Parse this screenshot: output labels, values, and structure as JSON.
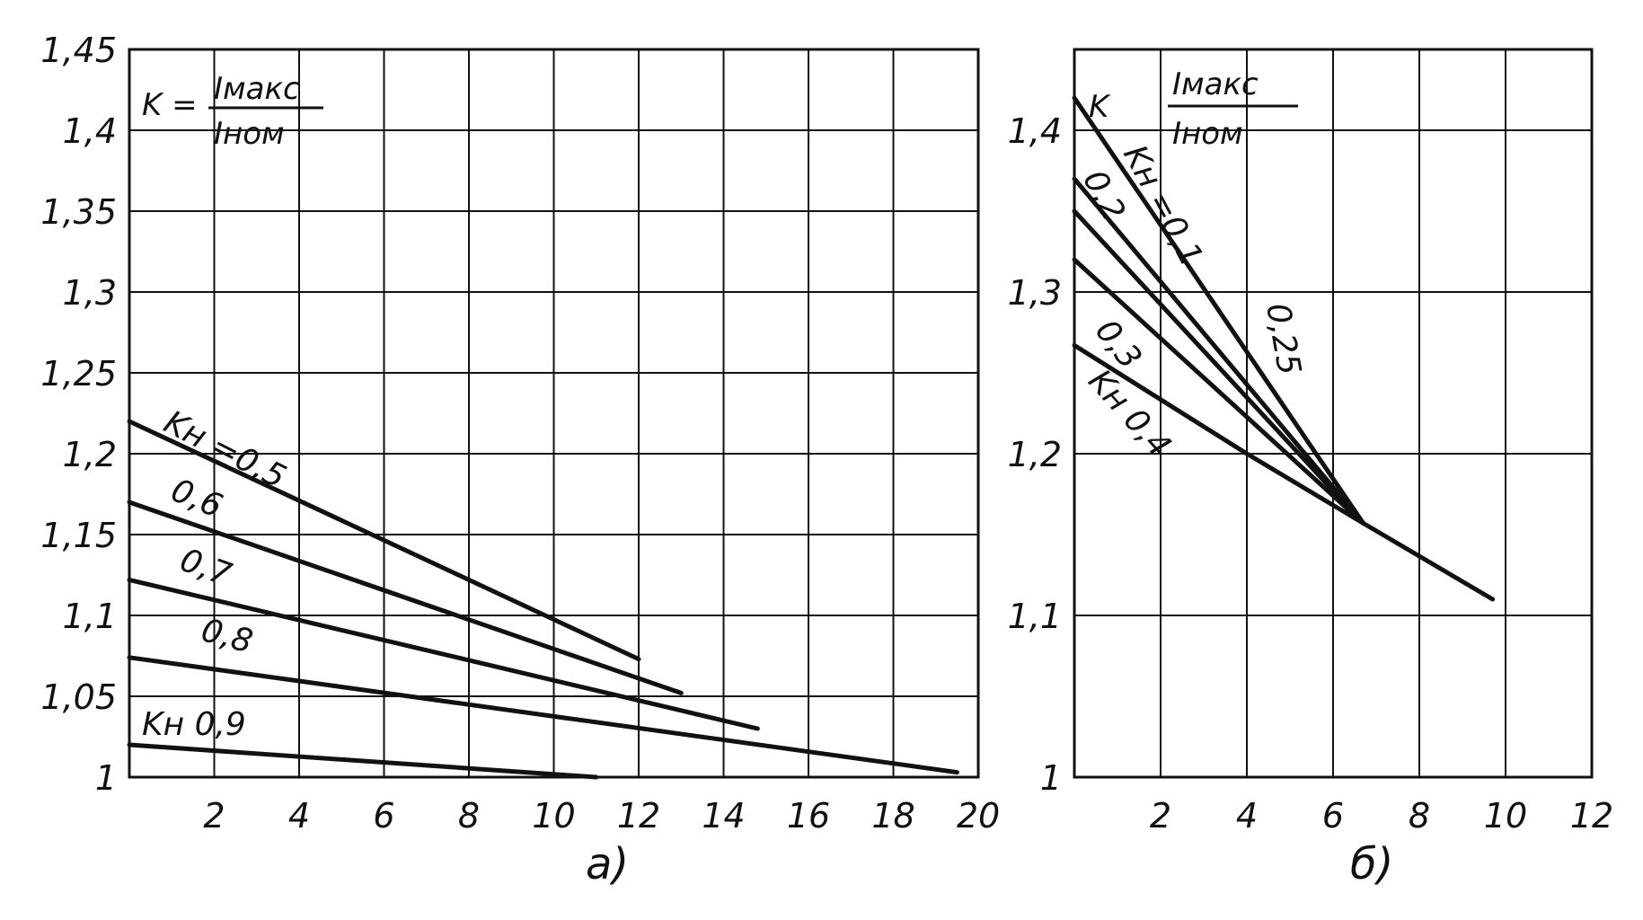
{
  "chart_data": [
    {
      "type": "line",
      "caption": "а)",
      "ylabel_formula": {
        "lhs": "K =",
        "numerator": "Iмакс",
        "denominator": "Iном"
      },
      "xlim": [
        0,
        20
      ],
      "ylim": [
        1,
        1.45
      ],
      "x_ticks": [
        2,
        4,
        6,
        8,
        10,
        12,
        14,
        16,
        18,
        20
      ],
      "x_tick_labels": [
        "2",
        "4",
        "6",
        "8",
        "10",
        "12",
        "14",
        "16",
        "18",
        "20"
      ],
      "y_ticks": [
        1,
        1.05,
        1.1,
        1.15,
        1.2,
        1.25,
        1.3,
        1.35,
        1.4,
        1.45
      ],
      "y_tick_labels": [
        "1",
        "1,05",
        "1,1",
        "1,15",
        "1,2",
        "1,25",
        "1,3",
        "1,35",
        "1,4",
        "1,45"
      ],
      "grid": true,
      "series": [
        {
          "name": "Kн =0,5",
          "x": [
            0,
            12
          ],
          "y": [
            1.22,
            1.073
          ]
        },
        {
          "name": "0,6",
          "x": [
            0,
            13
          ],
          "y": [
            1.17,
            1.052
          ]
        },
        {
          "name": "0,7",
          "x": [
            0,
            14.8
          ],
          "y": [
            1.122,
            1.03
          ]
        },
        {
          "name": "0,8",
          "x": [
            0,
            19.5
          ],
          "y": [
            1.074,
            1.003
          ]
        },
        {
          "name": "Kн 0,9",
          "x": [
            0,
            11
          ],
          "y": [
            1.02,
            1.0
          ]
        }
      ]
    },
    {
      "type": "line",
      "caption": "б)",
      "ylabel_formula": {
        "lhs": "K",
        "numerator": "Iмакс",
        "denominator": "Iном"
      },
      "xlim": [
        0,
        12
      ],
      "ylim": [
        1,
        1.45
      ],
      "x_ticks": [
        2,
        4,
        6,
        8,
        10,
        12
      ],
      "x_tick_labels": [
        "2",
        "4",
        "6",
        "8",
        "10",
        "12"
      ],
      "y_ticks": [
        1,
        1.1,
        1.2,
        1.3,
        1.4
      ],
      "y_tick_labels": [
        "1",
        "1,1",
        "1,2",
        "1,3",
        "1,4"
      ],
      "grid": true,
      "series": [
        {
          "name": "Kн =0,1",
          "x": [
            0,
            6.7
          ],
          "y": [
            1.42,
            1.157
          ]
        },
        {
          "name": "0,2",
          "x": [
            0,
            6.7
          ],
          "y": [
            1.37,
            1.157
          ]
        },
        {
          "name": "0,25",
          "x": [
            0,
            6.7
          ],
          "y": [
            1.35,
            1.157
          ]
        },
        {
          "name": "0,3",
          "x": [
            0,
            6.7
          ],
          "y": [
            1.32,
            1.157
          ]
        },
        {
          "name": "Kн 0,4",
          "x": [
            0,
            4,
            6.7
          ],
          "y": [
            1.267,
            1.2,
            1.157
          ]
        },
        {
          "name": "",
          "x": [
            6.7,
            9.7
          ],
          "y": [
            1.157,
            1.11
          ]
        }
      ]
    }
  ]
}
